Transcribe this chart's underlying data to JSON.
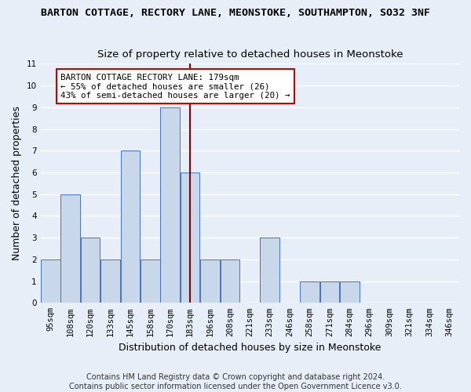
{
  "title": "BARTON COTTAGE, RECTORY LANE, MEONSTOKE, SOUTHAMPTON, SO32 3NF",
  "subtitle": "Size of property relative to detached houses in Meonstoke",
  "xlabel": "Distribution of detached houses by size in Meonstoke",
  "ylabel": "Number of detached properties",
  "bin_labels": [
    "95sqm",
    "108sqm",
    "120sqm",
    "133sqm",
    "145sqm",
    "158sqm",
    "170sqm",
    "183sqm",
    "196sqm",
    "208sqm",
    "221sqm",
    "233sqm",
    "246sqm",
    "258sqm",
    "271sqm",
    "284sqm",
    "296sqm",
    "309sqm",
    "321sqm",
    "334sqm",
    "346sqm"
  ],
  "bar_heights": [
    2,
    5,
    3,
    2,
    7,
    2,
    9,
    6,
    2,
    2,
    0,
    3,
    0,
    1,
    1,
    1,
    0,
    0,
    0,
    0,
    0
  ],
  "bar_color": "#c8d8ea",
  "bar_edge_color": "#4472c4",
  "highlight_line_color": "#8b0000",
  "highlight_line_bin_index": 7,
  "ylim": [
    0,
    11
  ],
  "yticks": [
    0,
    1,
    2,
    3,
    4,
    5,
    6,
    7,
    8,
    9,
    10,
    11
  ],
  "annotation_text": "BARTON COTTAGE RECTORY LANE: 179sqm\n← 55% of detached houses are smaller (26)\n43% of semi-detached houses are larger (20) →",
  "annotation_box_color": "#ffffff",
  "annotation_box_edge": "#cc0000",
  "footer_line1": "Contains HM Land Registry data © Crown copyright and database right 2024.",
  "footer_line2": "Contains public sector information licensed under the Open Government Licence v3.0.",
  "background_color": "#e8eef8",
  "grid_color": "#ffffff",
  "title_fontsize": 9.5,
  "subtitle_fontsize": 9.5,
  "axis_label_fontsize": 9,
  "tick_fontsize": 7.5,
  "annotation_fontsize": 7.8,
  "footer_fontsize": 7.0
}
